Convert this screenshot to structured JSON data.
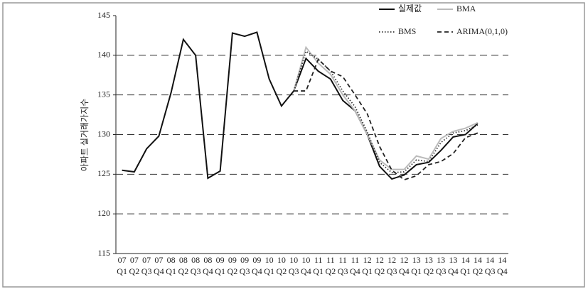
{
  "chart_data": {
    "type": "line",
    "y_label": "아파트 실거래가지수",
    "categories": [
      [
        "07",
        "Q1"
      ],
      [
        "07",
        "Q2"
      ],
      [
        "07",
        "Q3"
      ],
      [
        "07",
        "Q4"
      ],
      [
        "08",
        "Q1"
      ],
      [
        "08",
        "Q2"
      ],
      [
        "08",
        "Q3"
      ],
      [
        "08",
        "Q4"
      ],
      [
        "09",
        "Q1"
      ],
      [
        "09",
        "Q2"
      ],
      [
        "09",
        "Q3"
      ],
      [
        "09",
        "Q4"
      ],
      [
        "10",
        "Q1"
      ],
      [
        "10",
        "Q2"
      ],
      [
        "10",
        "Q3"
      ],
      [
        "10",
        "Q4"
      ],
      [
        "11",
        "Q1"
      ],
      [
        "11",
        "Q2"
      ],
      [
        "11",
        "Q3"
      ],
      [
        "11",
        "Q4"
      ],
      [
        "12",
        "Q1"
      ],
      [
        "12",
        "Q2"
      ],
      [
        "12",
        "Q3"
      ],
      [
        "12",
        "Q4"
      ],
      [
        "13",
        "Q1"
      ],
      [
        "13",
        "Q2"
      ],
      [
        "13",
        "Q3"
      ],
      [
        "13",
        "Q4"
      ],
      [
        "14",
        "Q1"
      ],
      [
        "14",
        "Q2"
      ],
      [
        "14",
        "Q3"
      ],
      [
        "14",
        "Q4"
      ]
    ],
    "series": [
      {
        "name": "실제값",
        "color": "#111111",
        "dash": "solid",
        "values": [
          125.5,
          125.3,
          128.2,
          129.8,
          135.3,
          142,
          140,
          124.5,
          125.4,
          142.8,
          142.4,
          142.9,
          137,
          133.6,
          135.5,
          139.6,
          138,
          137,
          134.3,
          133,
          130,
          126,
          124.4,
          124.9,
          126.2,
          126.5,
          128,
          129.7,
          130,
          131.4,
          null,
          null
        ]
      },
      {
        "name": "BMA",
        "color": "#bbbbbb",
        "dash": "solid",
        "values": [
          null,
          null,
          null,
          null,
          null,
          null,
          null,
          null,
          null,
          null,
          null,
          null,
          null,
          null,
          135.5,
          141,
          139,
          137.6,
          135,
          133,
          130,
          126.8,
          125.6,
          125.6,
          127.3,
          126.9,
          129.5,
          130.4,
          130.8,
          131.5,
          null,
          null
        ]
      },
      {
        "name": "BMS",
        "color": "#333333",
        "dash": "dotted",
        "values": [
          null,
          null,
          null,
          null,
          null,
          null,
          null,
          null,
          null,
          null,
          null,
          null,
          null,
          null,
          135.5,
          140.5,
          139.5,
          138,
          135.5,
          133.5,
          130.3,
          126.5,
          125.2,
          125.3,
          126.8,
          126.6,
          129,
          130.2,
          130.5,
          131.2,
          null,
          null
        ]
      },
      {
        "name": "ARIMA(0,1,0)",
        "color": "#222222",
        "dash": "dashed",
        "values": [
          null,
          null,
          null,
          null,
          null,
          null,
          null,
          null,
          null,
          null,
          null,
          null,
          null,
          null,
          135.5,
          135.5,
          139.5,
          138,
          137.3,
          135,
          132.6,
          128.5,
          125.5,
          124.3,
          124.8,
          126.2,
          126.6,
          127.6,
          129.6,
          130.2,
          null,
          null
        ]
      }
    ],
    "ylim": [
      115,
      145
    ],
    "yticks": [
      115,
      120,
      125,
      130,
      135,
      140,
      145
    ],
    "grid": true,
    "legend": "top-right"
  }
}
